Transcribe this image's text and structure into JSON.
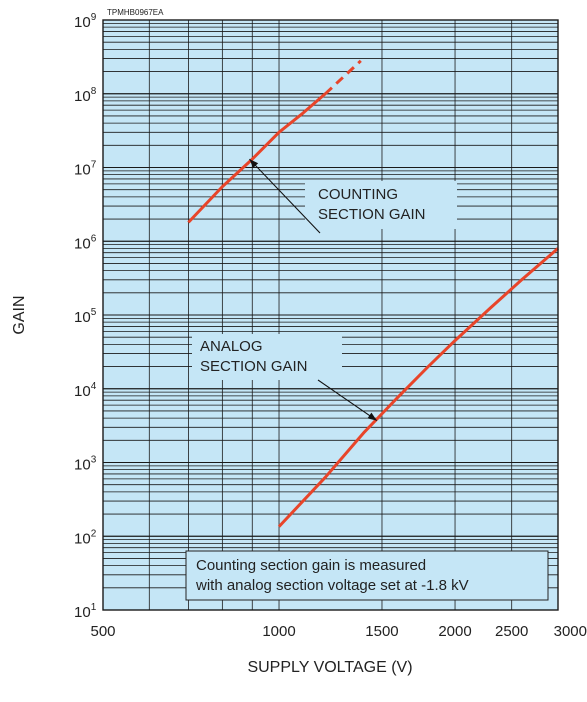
{
  "chart_data": {
    "type": "line",
    "figure_code": "TPMHB0967EA",
    "xlabel": "SUPPLY VOLTAGE (V)",
    "ylabel": "GAIN",
    "x_scale": "log",
    "y_scale": "log",
    "xlim": [
      500,
      3000
    ],
    "ylim": [
      10,
      1000000000
    ],
    "x_ticks": [
      500,
      1000,
      1500,
      2000,
      2500,
      3000
    ],
    "y_tick_exponents": [
      1,
      2,
      3,
      4,
      5,
      6,
      7,
      8,
      9
    ],
    "y_tick_base": "10",
    "grid": true,
    "background_color": "#c5e6f6",
    "grid_color": "#1a1a1a",
    "series_color": "#e8452a",
    "series": [
      {
        "points": [
          [
            700,
            1800000
          ],
          [
            800,
            5500000
          ],
          [
            900,
            13000000
          ],
          [
            1000,
            30000000
          ],
          [
            1100,
            55000000
          ],
          [
            1200,
            100000000
          ]
        ],
        "dashed_extension": [
          [
            1200,
            100000000
          ],
          [
            1380,
            280000000
          ]
        ],
        "callout": {
          "lines": [
            "COUNTING",
            "SECTION GAIN"
          ],
          "arrow_to": [
            890,
            13000000
          ]
        }
      },
      {
        "points": [
          [
            1000,
            135
          ],
          [
            1200,
            630
          ],
          [
            1400,
            2600
          ],
          [
            1600,
            7800
          ],
          [
            1800,
            20000
          ],
          [
            2000,
            45000
          ],
          [
            2300,
            125000
          ],
          [
            2600,
            300000
          ],
          [
            3000,
            800000
          ]
        ],
        "callout": {
          "lines": [
            "ANALOG",
            "SECTION GAIN"
          ],
          "arrow_to": [
            1470,
            3700
          ]
        }
      }
    ],
    "note": [
      "Counting section gain is measured",
      "with analog section voltage set at -1.8 kV"
    ]
  }
}
